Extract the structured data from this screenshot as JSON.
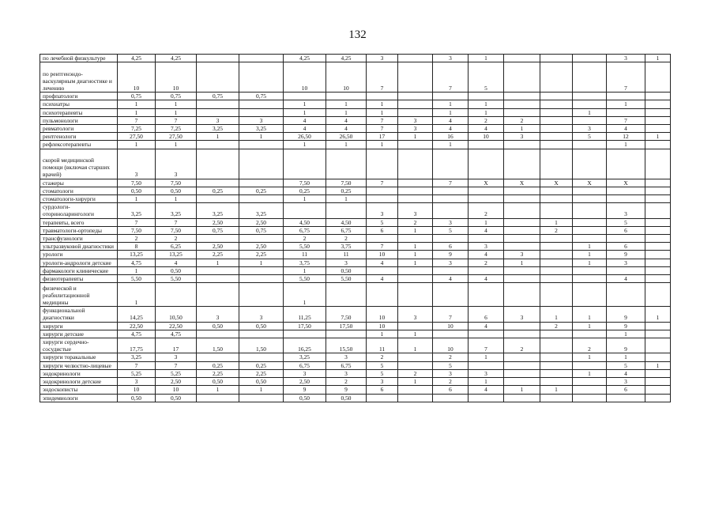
{
  "page_number": "132",
  "rows": [
    {
      "label": "по лечебной физкультуре",
      "values": [
        "4,25",
        "4,25",
        "",
        "",
        "4,25",
        "4,25",
        "3",
        "",
        "3",
        "1",
        "",
        "",
        "",
        "3",
        "1"
      ]
    },
    {
      "label": "по рентгенэндо-васкулярным диагностике и лечению",
      "values": [
        "10",
        "10",
        "",
        "",
        "10",
        "10",
        "7",
        "",
        "7",
        "5",
        "",
        "",
        "",
        "7",
        ""
      ]
    },
    {
      "label": "профпатологи",
      "values": [
        "0,75",
        "0,75",
        "0,75",
        "0,75",
        "",
        "",
        "",
        "",
        "",
        "",
        "",
        "",
        "",
        "",
        ""
      ]
    },
    {
      "label": "психиатры",
      "values": [
        "1",
        "1",
        "",
        "",
        "1",
        "1",
        "1",
        "",
        "1",
        "1",
        "",
        "",
        "",
        "1",
        ""
      ]
    },
    {
      "label": "психотерапевты",
      "values": [
        "1",
        "1",
        "",
        "",
        "1",
        "1",
        "1",
        "",
        "1",
        "1",
        "",
        "",
        "1",
        "",
        ""
      ]
    },
    {
      "label": "пульмонологи",
      "values": [
        "7",
        "7",
        "3",
        "3",
        "4",
        "4",
        "7",
        "3",
        "4",
        "2",
        "2",
        "",
        "",
        "7",
        ""
      ]
    },
    {
      "label": "ревматологи",
      "values": [
        "7,25",
        "7,25",
        "3,25",
        "3,25",
        "4",
        "4",
        "7",
        "3",
        "4",
        "4",
        "1",
        "",
        "3",
        "4",
        ""
      ]
    },
    {
      "label": "рентгенологи",
      "values": [
        "27,50",
        "27,50",
        "1",
        "1",
        "26,50",
        "26,50",
        "17",
        "1",
        "16",
        "10",
        "3",
        "",
        "5",
        "12",
        "1"
      ]
    },
    {
      "label": "рефлексотерапевты",
      "values": [
        "1",
        "1",
        "",
        "",
        "1",
        "1",
        "1",
        "",
        "1",
        "",
        "",
        "",
        "",
        "1",
        ""
      ]
    },
    {
      "label": "скорой медицинской помощи (включая старших врачей)",
      "values": [
        "3",
        "3",
        "",
        "",
        "",
        "",
        "",
        "",
        "",
        "",
        "",
        "",
        "",
        "",
        ""
      ]
    },
    {
      "label": "стажеры",
      "values": [
        "7,50",
        "7,50",
        "",
        "",
        "7,50",
        "7,50",
        "7",
        "",
        "7",
        "X",
        "X",
        "X",
        "X",
        "X",
        ""
      ]
    },
    {
      "label": "стоматологи",
      "values": [
        "0,50",
        "0,50",
        "0,25",
        "0,25",
        "0,25",
        "0,25",
        "",
        "",
        "",
        "",
        "",
        "",
        "",
        "",
        ""
      ]
    },
    {
      "label": "стоматологи-хирурги",
      "values": [
        "1",
        "1",
        "",
        "",
        "1",
        "1",
        "",
        "",
        "",
        "",
        "",
        "",
        "",
        "",
        ""
      ]
    },
    {
      "label": "сурдологи-оториноларингологи",
      "values": [
        "3,25",
        "3,25",
        "3,25",
        "3,25",
        "",
        "",
        "3",
        "3",
        "",
        "2",
        "",
        "",
        "",
        "3",
        ""
      ]
    },
    {
      "label": "терапевты, всего",
      "values": [
        "7",
        "7",
        "2,50",
        "2,50",
        "4,50",
        "4,50",
        "5",
        "2",
        "3",
        "1",
        "",
        "1",
        "",
        "5",
        ""
      ]
    },
    {
      "label": "травматологи-ортопеды",
      "values": [
        "7,50",
        "7,50",
        "0,75",
        "0,75",
        "6,75",
        "6,75",
        "6",
        "1",
        "5",
        "4",
        "",
        "2",
        "",
        "6",
        ""
      ]
    },
    {
      "label": "трансфузиологи",
      "values": [
        "2",
        "2",
        "",
        "",
        "2",
        "2",
        "",
        "",
        "",
        "",
        "",
        "",
        "",
        "",
        ""
      ]
    },
    {
      "label": "ультразвуковой диагностики",
      "values": [
        "8",
        "6,25",
        "2,50",
        "2,50",
        "5,50",
        "3,75",
        "7",
        "1",
        "6",
        "3",
        "",
        "",
        "1",
        "6",
        ""
      ]
    },
    {
      "label": "урологи",
      "values": [
        "13,25",
        "13,25",
        "2,25",
        "2,25",
        "11",
        "11",
        "10",
        "1",
        "9",
        "4",
        "3",
        "",
        "1",
        "9",
        ""
      ]
    },
    {
      "label": "урологи-андрологи детские",
      "values": [
        "4,75",
        "4",
        "1",
        "1",
        "3,75",
        "3",
        "4",
        "1",
        "3",
        "2",
        "1",
        "",
        "1",
        "3",
        ""
      ]
    },
    {
      "label": "фармакологи клинические",
      "values": [
        "1",
        "0,50",
        "",
        "",
        "1",
        "0,50",
        "",
        "",
        "",
        "",
        "",
        "",
        "",
        "",
        ""
      ]
    },
    {
      "label": "физиотерапевты",
      "values": [
        "5,50",
        "5,50",
        "",
        "",
        "5,50",
        "5,50",
        "4",
        "",
        "4",
        "4",
        "",
        "",
        "",
        "4",
        ""
      ]
    },
    {
      "label": "физической и реабилитационной медицины",
      "values": [
        "1",
        "",
        "",
        "",
        "1",
        "",
        "",
        "",
        "",
        "",
        "",
        "",
        "",
        "",
        ""
      ]
    },
    {
      "label": "функциональной диагностики",
      "values": [
        "14,25",
        "10,50",
        "3",
        "3",
        "11,25",
        "7,50",
        "10",
        "3",
        "7",
        "6",
        "3",
        "1",
        "1",
        "9",
        "1"
      ]
    },
    {
      "label": "хирурги",
      "values": [
        "22,50",
        "22,50",
        "0,50",
        "0,50",
        "17,50",
        "17,50",
        "10",
        "",
        "10",
        "4",
        "",
        "2",
        "1",
        "9",
        ""
      ]
    },
    {
      "label": "хирурги детские",
      "values": [
        "4,75",
        "4,75",
        "",
        "",
        "",
        "",
        "1",
        "1",
        "",
        "",
        "",
        "",
        "",
        "1",
        ""
      ]
    },
    {
      "label": "хирурги сердечно-сосудистые",
      "values": [
        "17,75",
        "17",
        "1,50",
        "1,50",
        "16,25",
        "15,50",
        "11",
        "1",
        "10",
        "7",
        "2",
        "",
        "2",
        "9",
        ""
      ]
    },
    {
      "label": "хирурги торакальные",
      "values": [
        "3,25",
        "3",
        "",
        "",
        "3,25",
        "3",
        "2",
        "",
        "2",
        "1",
        "",
        "",
        "1",
        "1",
        ""
      ]
    },
    {
      "label": "хирурги челюстно-лицевые",
      "values": [
        "7",
        "7",
        "0,25",
        "0,25",
        "6,75",
        "6,75",
        "5",
        "",
        "5",
        "",
        "",
        "",
        "",
        "5",
        "1"
      ]
    },
    {
      "label": "эндокринологи",
      "values": [
        "5,25",
        "5,25",
        "2,25",
        "2,25",
        "3",
        "3",
        "5",
        "2",
        "3",
        "3",
        "",
        "",
        "1",
        "4",
        ""
      ]
    },
    {
      "label": "эндокринологи детские",
      "values": [
        "3",
        "2,50",
        "0,50",
        "0,50",
        "2,50",
        "2",
        "3",
        "1",
        "2",
        "1",
        "",
        "",
        "",
        "3",
        ""
      ]
    },
    {
      "label": "эндоскописты",
      "values": [
        "10",
        "10",
        "1",
        "1",
        "9",
        "9",
        "6",
        "",
        "6",
        "4",
        "1",
        "1",
        "",
        "6",
        ""
      ]
    },
    {
      "label": "эпидемиологи",
      "values": [
        "0,50",
        "0,50",
        "",
        "",
        "0,50",
        "0,50",
        "",
        "",
        "",
        "",
        "",
        "",
        "",
        "",
        ""
      ]
    }
  ]
}
